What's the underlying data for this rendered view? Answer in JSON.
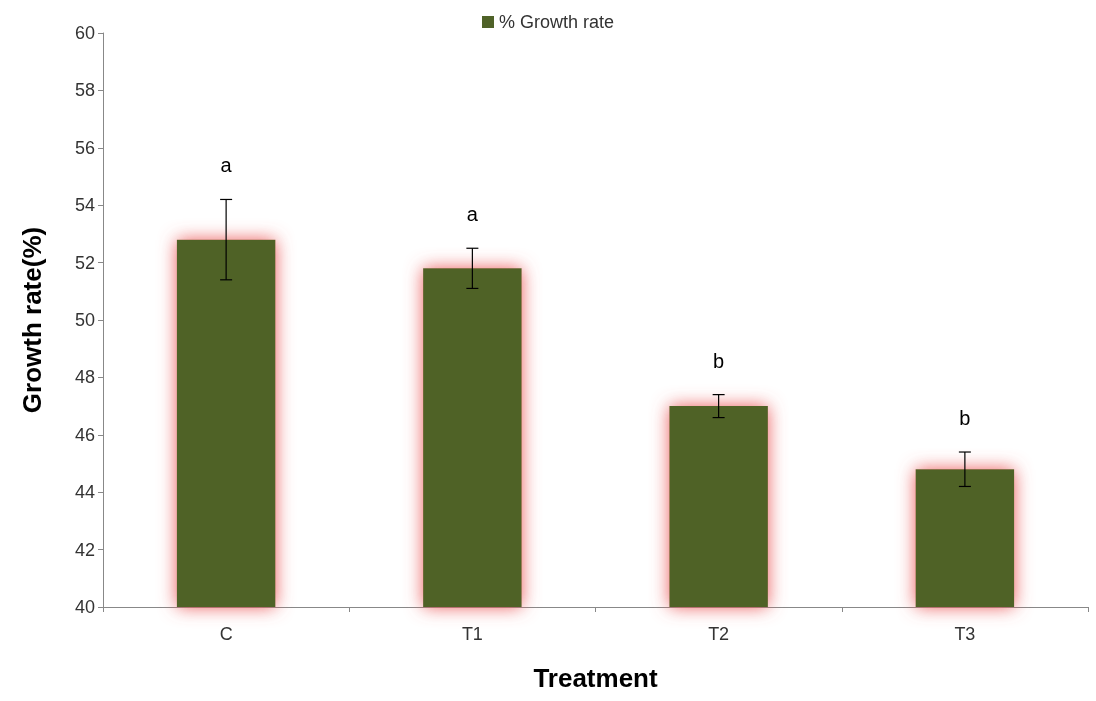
{
  "chart_data": {
    "type": "bar",
    "xlabel": "Treatment",
    "ylabel": "Growth rate(%)",
    "categories": [
      "C",
      "T1",
      "T2",
      "T3"
    ],
    "series": [
      {
        "name": "% Growth rate",
        "color": "#4f6228",
        "values": [
          52.8,
          51.8,
          47.0,
          44.8
        ],
        "errors": [
          1.4,
          0.7,
          0.4,
          0.6
        ]
      }
    ],
    "ylim": [
      40,
      60
    ],
    "yticks": [
      40,
      42,
      44,
      46,
      48,
      50,
      52,
      54,
      56,
      58,
      60
    ],
    "grid": false,
    "legend": "top",
    "annotations": [
      "a",
      "a",
      "b",
      "b"
    ]
  }
}
